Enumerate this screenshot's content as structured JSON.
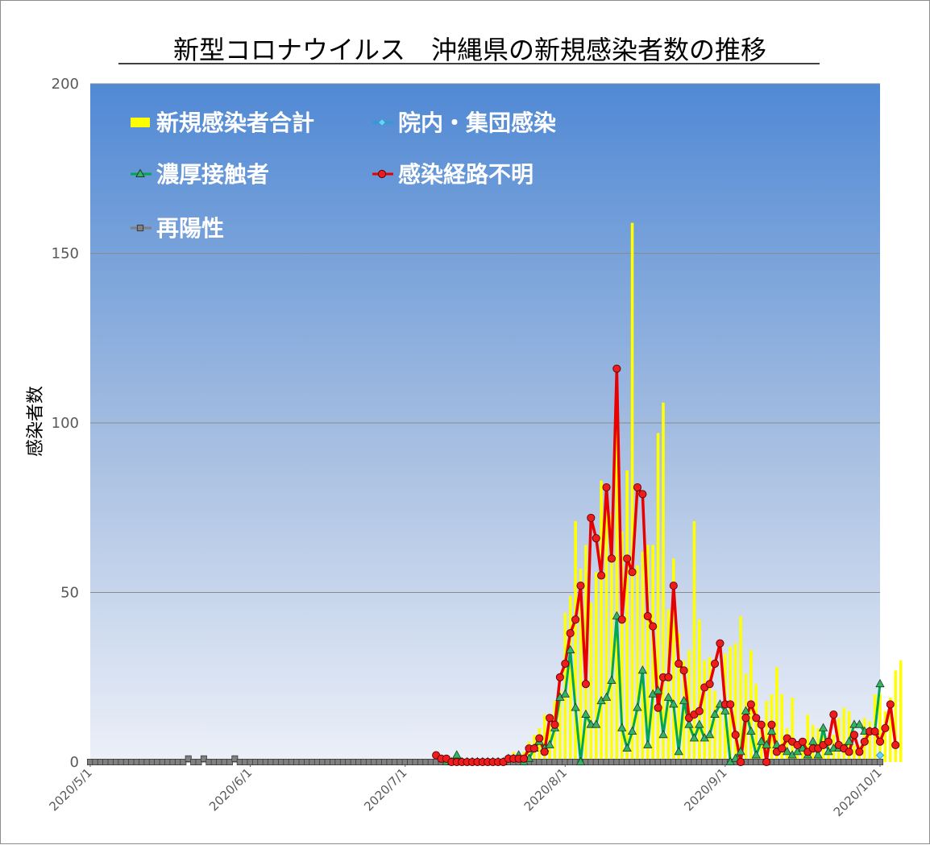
{
  "chart_data": {
    "type": "line",
    "title": "新型コロナウイルス　沖縄県の新規感染者数の推移",
    "xlabel": "",
    "ylabel": "感染者数",
    "ylim": [
      0,
      200
    ],
    "yticks": [
      "0",
      "50",
      "100",
      "150",
      "200"
    ],
    "xlim": [
      "2020/5/1",
      "2020/10/1"
    ],
    "x_tick_labels": [
      "2020/5/1",
      "2020/6/1",
      "2020/7/1",
      "2020/8/1",
      "2020/9/1",
      "2020/10/1"
    ],
    "grid": true,
    "legend_position": "top-left, inside plot",
    "colors": {
      "plot_top": "#5089d4",
      "plot_bottom": "#ecf0f8",
      "total": "#ffff00",
      "in_hospital": "#2e9bd6",
      "close_contact": "#00a651",
      "unknown_route": "#e60000",
      "positive_again": "#808080"
    },
    "series": [
      {
        "name": "新規感染者合計",
        "kind": "bar",
        "start": "2020/7/21",
        "values": [
          1,
          3,
          2,
          3,
          6,
          8,
          10,
          14,
          11,
          18,
          21,
          44,
          49,
          71,
          57,
          64,
          47,
          56,
          83,
          77,
          73,
          100,
          68,
          86,
          159,
          58,
          62,
          64,
          64,
          97,
          106,
          45,
          60,
          38,
          30,
          33,
          71,
          42,
          30,
          31,
          21,
          15,
          32,
          34,
          35,
          43,
          26,
          33,
          23,
          11,
          18,
          20,
          28,
          20,
          10,
          19,
          6,
          7,
          14,
          11,
          10,
          8,
          6,
          8,
          13,
          16,
          15,
          5,
          5,
          13,
          12,
          20,
          20,
          15,
          19,
          27,
          30
        ]
      },
      {
        "name": "院内・集団感染",
        "kind": "line",
        "points": [
          {
            "x": "2020/10/1",
            "y": 2
          }
        ]
      },
      {
        "name": "濃厚接触者",
        "kind": "line",
        "start": "2020/7/9",
        "values": [
          0,
          0,
          2,
          0,
          0,
          0,
          0,
          0,
          0,
          0,
          0,
          0,
          1,
          1,
          2,
          0,
          1,
          4,
          6,
          4,
          5,
          10,
          19,
          20,
          33,
          16,
          0,
          14,
          11,
          11,
          18,
          19,
          24,
          43,
          10,
          4,
          9,
          16,
          27,
          5,
          20,
          21,
          8,
          19,
          17,
          3,
          18,
          11,
          7,
          11,
          7,
          8,
          14,
          17,
          15,
          0,
          1,
          3,
          15,
          9,
          2,
          6,
          5,
          9,
          5,
          4,
          3,
          2,
          3,
          4,
          2,
          6,
          2,
          10,
          3,
          4,
          4,
          4,
          6,
          11,
          11,
          9,
          9,
          9,
          23
        ]
      },
      {
        "name": "感染経路不明",
        "kind": "line",
        "start": "2020/7/7",
        "values": [
          2,
          1,
          1,
          0,
          0,
          0,
          0,
          0,
          0,
          0,
          0,
          0,
          0,
          0,
          1,
          1,
          1,
          1,
          4,
          4,
          7,
          3,
          13,
          11,
          25,
          29,
          38,
          42,
          52,
          23,
          72,
          66,
          55,
          81,
          60,
          116,
          42,
          60,
          56,
          81,
          79,
          43,
          40,
          16,
          25,
          25,
          52,
          29,
          27,
          13,
          14,
          15,
          22,
          23,
          29,
          35,
          17,
          17,
          8,
          0,
          13,
          17,
          13,
          11,
          0,
          11,
          3,
          4,
          7,
          6,
          5,
          6,
          3,
          4,
          4,
          5,
          6,
          14,
          5,
          4,
          3,
          8,
          3,
          6,
          9,
          9,
          6,
          10,
          17,
          5
        ]
      },
      {
        "name": "再陽性",
        "kind": "line",
        "start": "2020/5/1",
        "nonzero": [
          {
            "x": "2020/5/20",
            "y": 1
          },
          {
            "x": "2020/5/23",
            "y": 1
          },
          {
            "x": "2020/5/29",
            "y": 1
          }
        ],
        "values_default": 0
      }
    ]
  }
}
